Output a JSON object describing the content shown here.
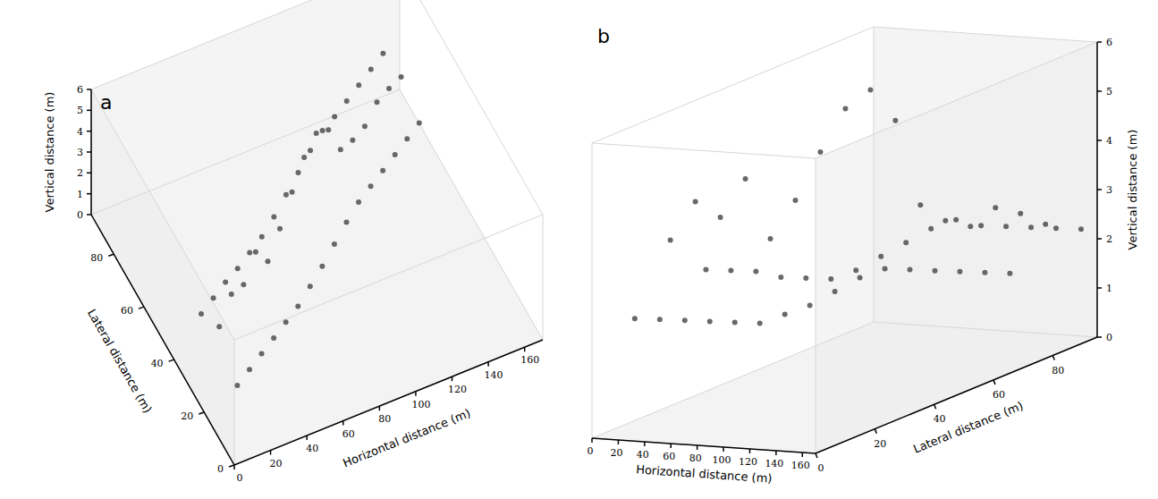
{
  "chart_data": [
    {
      "type": "scatter3d",
      "panel": "a",
      "xlabel": "Horizontal distance (m)",
      "ylabel": "Lateral distance (m)",
      "zlabel": "Vertical distance (m)",
      "xlim": [
        0,
        170
      ],
      "xticks": [
        0,
        20,
        40,
        60,
        80,
        100,
        120,
        140,
        160
      ],
      "ylim": [
        0,
        95
      ],
      "yticks": [
        0,
        20,
        40,
        60,
        80
      ],
      "zlim": [
        0,
        6
      ],
      "zticks": [
        0,
        1,
        2,
        3,
        4,
        5,
        6
      ],
      "color": "#444444",
      "tick_labels": true,
      "points": {
        "x": [
          10,
          20,
          30,
          40,
          50,
          60,
          70,
          80,
          90,
          100,
          110,
          120,
          130,
          140,
          150,
          160,
          10,
          20,
          30,
          40,
          50,
          60,
          70,
          80,
          90,
          100,
          110,
          120,
          130,
          140,
          150,
          160,
          10,
          20,
          30,
          40,
          50,
          60,
          70,
          80,
          90,
          100,
          110,
          120,
          130,
          140,
          150,
          160
        ],
        "y": [
          10,
          14,
          18,
          22,
          26,
          30,
          34,
          38,
          42,
          46,
          50,
          54,
          58,
          62,
          66,
          70,
          22,
          26,
          30,
          34,
          38,
          42,
          46,
          50,
          54,
          58,
          62,
          66,
          70,
          74,
          78,
          82,
          34,
          38,
          42,
          46,
          50,
          54,
          58,
          62,
          66,
          70,
          74,
          78,
          82,
          86,
          90,
          94
        ],
        "z": [
          2.2,
          2.1,
          2.0,
          1.9,
          1.8,
          1.7,
          1.8,
          1.9,
          2.1,
          2.3,
          2.4,
          2.3,
          2.2,
          2.1,
          2.0,
          1.9,
          3.5,
          4.2,
          3.8,
          4.5,
          3.2,
          3.9,
          4.8,
          5.6,
          5.9,
          5.2,
          3.4,
          3.0,
          2.8,
          3.1,
          2.9,
          2.6,
          2.6,
          2.5,
          2.4,
          2.2,
          2.1,
          2.0,
          2.1,
          2.3,
          2.5,
          2.7,
          2.8,
          2.6,
          2.5,
          2.4,
          2.3,
          2.2
        ]
      }
    },
    {
      "type": "scatter3d",
      "panel": "b",
      "xlabel": "Horizontal distance (m)",
      "ylabel": "Lateral distance (m)",
      "zlabel": "Vertical distance (m)",
      "xlim": [
        0,
        170
      ],
      "xticks": [
        0,
        20,
        40,
        60,
        80,
        100,
        120,
        140,
        160
      ],
      "ylim": [
        0,
        95
      ],
      "yticks": [
        0,
        20,
        40,
        60,
        80
      ],
      "zlim": [
        0,
        6
      ],
      "zticks": [
        0,
        1,
        2,
        3,
        4,
        5,
        6
      ],
      "color": "#444444",
      "tick_labels": true,
      "points": {
        "x": [
          10,
          20,
          30,
          40,
          50,
          60,
          70,
          80,
          90,
          100,
          110,
          120,
          130,
          140,
          150,
          160,
          10,
          20,
          30,
          40,
          50,
          60,
          70,
          80,
          90,
          100,
          110,
          120,
          130,
          140,
          150,
          160,
          10,
          20,
          30,
          40,
          50,
          60,
          70,
          80,
          90,
          100,
          110,
          120,
          130,
          140,
          150,
          160
        ],
        "y": [
          10,
          14,
          18,
          22,
          26,
          30,
          34,
          38,
          42,
          46,
          50,
          54,
          58,
          62,
          66,
          70,
          22,
          26,
          30,
          34,
          38,
          42,
          46,
          50,
          54,
          58,
          62,
          66,
          70,
          74,
          78,
          82,
          34,
          38,
          42,
          46,
          50,
          54,
          58,
          62,
          66,
          70,
          74,
          78,
          82,
          86,
          90,
          94
        ],
        "z": [
          2.2,
          2.1,
          2.0,
          1.9,
          1.8,
          1.7,
          1.8,
          1.9,
          2.1,
          2.3,
          2.4,
          2.3,
          2.2,
          2.1,
          2.0,
          1.9,
          3.5,
          4.2,
          3.8,
          4.5,
          3.2,
          3.9,
          4.8,
          5.6,
          5.9,
          5.2,
          3.4,
          3.0,
          2.8,
          3.1,
          2.9,
          2.6,
          2.6,
          2.5,
          2.4,
          2.2,
          2.1,
          2.0,
          2.1,
          2.3,
          2.5,
          2.7,
          2.8,
          2.6,
          2.5,
          2.4,
          2.3,
          2.2
        ]
      }
    }
  ]
}
